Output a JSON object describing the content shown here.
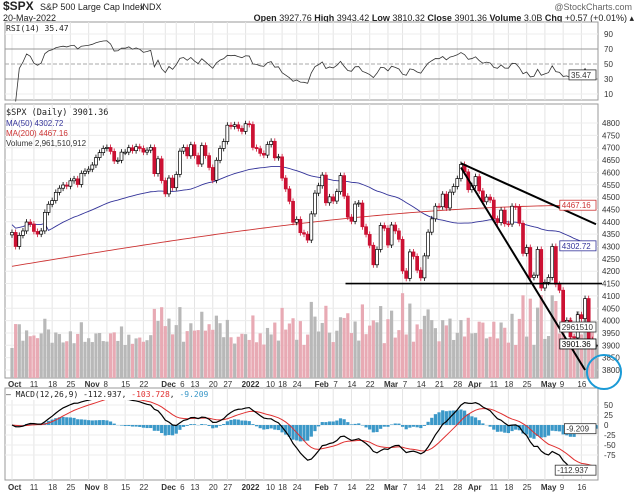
{
  "header": {
    "symbol": "$SPX",
    "name": "S&P 500 Large Cap Index",
    "exchange": "INDX",
    "date": "20-May-2022",
    "watermark": "@StockCharts.com",
    "open_label": "Open",
    "open": "3927.76",
    "high_label": "High",
    "high": "3943.42",
    "low_label": "Low",
    "low": "3810.32",
    "close_label": "Close",
    "close": "3901.36",
    "volume_label": "Volume",
    "volume": "3.0B",
    "chg_label": "Chg",
    "chg": "+0.57 (+0.01%)"
  },
  "rsi": {
    "legend": "RSI(14) 35.47",
    "value_tag": "35.47",
    "ticks": [
      "90",
      "70",
      "50",
      "30",
      "10"
    ]
  },
  "price": {
    "legend_title": "$SPX (Daily) 3901.36",
    "ma50_legend": "MA(50) 4302.72",
    "ma200_legend": "MA(200) 4467.16",
    "volume_legend": "Volume 2,961,510,912",
    "ma50_tag": "4302.72",
    "ma200_tag": "4467.16",
    "close_tag": "3901.36",
    "volume_tag": "2961510",
    "colors": {
      "up": "#000000",
      "down": "#cc1133",
      "ma50": "#333399",
      "ma200": "#cc3333",
      "volume_up": "#b8b8b8",
      "volume_down": "#e8aab4",
      "circle": "#1a9ad6"
    }
  },
  "macd": {
    "legend_name": "MACD(12,26,9)",
    "macd": "-112.937",
    "signal": "-103.728",
    "hist": "-9.209",
    "ticks": [
      "50",
      "25",
      "0",
      "-25",
      "-50",
      "-75"
    ],
    "tag_macd": "-112.937",
    "tag_hist": "-9.209",
    "colors": {
      "macd": "#000000",
      "signal": "#e03030",
      "hist": "#3b98c8"
    }
  },
  "chart_data": {
    "type": "candlestick",
    "title": "$SPX S&P 500 Large Cap Index INDX",
    "ylim": [
      3800,
      4800
    ],
    "y_ticks": [
      3800,
      3850,
      3900,
      3950,
      4000,
      4050,
      4100,
      4150,
      4200,
      4250,
      4300,
      4350,
      4400,
      4450,
      4500,
      4550,
      4600,
      4650,
      4700,
      4750,
      4800
    ],
    "x_ticks": [
      [
        "Oct",
        "2021-10-01"
      ],
      [
        "11",
        "2021-10-11"
      ],
      [
        "18",
        "2021-10-18"
      ],
      [
        "25",
        "2021-10-25"
      ],
      [
        "Nov",
        "2021-11-01"
      ],
      [
        "8",
        "2021-11-08"
      ],
      [
        "15",
        "2021-11-15"
      ],
      [
        "22",
        "2021-11-22"
      ],
      [
        "Dec",
        "2021-12-01"
      ],
      [
        "6",
        "2021-12-06"
      ],
      [
        "13",
        "2021-12-13"
      ],
      [
        "20",
        "2021-12-20"
      ],
      [
        "27",
        "2021-12-27"
      ],
      [
        "2022",
        "2022-01-03"
      ],
      [
        "10",
        "2022-01-10"
      ],
      [
        "18",
        "2022-01-18"
      ],
      [
        "24",
        "2022-01-24"
      ],
      [
        "Feb",
        "2022-02-01"
      ],
      [
        "7",
        "2022-02-07"
      ],
      [
        "14",
        "2022-02-14"
      ],
      [
        "22",
        "2022-02-22"
      ],
      [
        "Mar",
        "2022-03-01"
      ],
      [
        "7",
        "2022-03-07"
      ],
      [
        "14",
        "2022-03-14"
      ],
      [
        "21",
        "2022-03-21"
      ],
      [
        "28",
        "2022-03-28"
      ],
      [
        "Apr",
        "2022-04-01"
      ],
      [
        "11",
        "2022-04-11"
      ],
      [
        "18",
        "2022-04-18"
      ],
      [
        "25",
        "2022-04-25"
      ],
      [
        "May",
        "2022-05-02"
      ],
      [
        "9",
        "2022-05-09"
      ],
      [
        "16",
        "2022-05-16"
      ]
    ],
    "dates": [
      "2021-10-01",
      "2021-10-04",
      "2021-10-05",
      "2021-10-06",
      "2021-10-07",
      "2021-10-08",
      "2021-10-11",
      "2021-10-12",
      "2021-10-13",
      "2021-10-14",
      "2021-10-15",
      "2021-10-18",
      "2021-10-19",
      "2021-10-20",
      "2021-10-21",
      "2021-10-22",
      "2021-10-25",
      "2021-10-26",
      "2021-10-27",
      "2021-10-28",
      "2021-10-29",
      "2021-11-01",
      "2021-11-02",
      "2021-11-03",
      "2021-11-04",
      "2021-11-05",
      "2021-11-08",
      "2021-11-09",
      "2021-11-10",
      "2021-11-11",
      "2021-11-12",
      "2021-11-15",
      "2021-11-16",
      "2021-11-17",
      "2021-11-18",
      "2021-11-19",
      "2021-11-22",
      "2021-11-23",
      "2021-11-24",
      "2021-11-26",
      "2021-11-29",
      "2021-11-30",
      "2021-12-01",
      "2021-12-02",
      "2021-12-03",
      "2021-12-06",
      "2021-12-07",
      "2021-12-08",
      "2021-12-09",
      "2021-12-10",
      "2021-12-13",
      "2021-12-14",
      "2021-12-15",
      "2021-12-16",
      "2021-12-17",
      "2021-12-20",
      "2021-12-21",
      "2021-12-22",
      "2021-12-23",
      "2021-12-27",
      "2021-12-28",
      "2021-12-29",
      "2021-12-30",
      "2021-12-31",
      "2022-01-03",
      "2022-01-04",
      "2022-01-05",
      "2022-01-06",
      "2022-01-07",
      "2022-01-10",
      "2022-01-11",
      "2022-01-12",
      "2022-01-13",
      "2022-01-14",
      "2022-01-18",
      "2022-01-19",
      "2022-01-20",
      "2022-01-21",
      "2022-01-24",
      "2022-01-25",
      "2022-01-26",
      "2022-01-27",
      "2022-01-28",
      "2022-01-31",
      "2022-02-01",
      "2022-02-02",
      "2022-02-03",
      "2022-02-04",
      "2022-02-07",
      "2022-02-08",
      "2022-02-09",
      "2022-02-10",
      "2022-02-11",
      "2022-02-14",
      "2022-02-15",
      "2022-02-16",
      "2022-02-17",
      "2022-02-18",
      "2022-02-22",
      "2022-02-23",
      "2022-02-24",
      "2022-02-25",
      "2022-02-28",
      "2022-03-01",
      "2022-03-02",
      "2022-03-03",
      "2022-03-04",
      "2022-03-07",
      "2022-03-08",
      "2022-03-09",
      "2022-03-10",
      "2022-03-11",
      "2022-03-14",
      "2022-03-15",
      "2022-03-16",
      "2022-03-17",
      "2022-03-18",
      "2022-03-21",
      "2022-03-22",
      "2022-03-23",
      "2022-03-24",
      "2022-03-25",
      "2022-03-28",
      "2022-03-29",
      "2022-03-30",
      "2022-03-31",
      "2022-04-01",
      "2022-04-04",
      "2022-04-05",
      "2022-04-06",
      "2022-04-07",
      "2022-04-08",
      "2022-04-11",
      "2022-04-12",
      "2022-04-13",
      "2022-04-14",
      "2022-04-18",
      "2022-04-19",
      "2022-04-20",
      "2022-04-21",
      "2022-04-22",
      "2022-04-25",
      "2022-04-26",
      "2022-04-27",
      "2022-04-28",
      "2022-04-29",
      "2022-05-02",
      "2022-05-03",
      "2022-05-04",
      "2022-05-05",
      "2022-05-06",
      "2022-05-09",
      "2022-05-10",
      "2022-05-11",
      "2022-05-12",
      "2022-05-13",
      "2022-05-16",
      "2022-05-17",
      "2022-05-18",
      "2022-05-19",
      "2022-05-20"
    ],
    "close": [
      4357,
      4300,
      4345,
      4363,
      4399,
      4391,
      4361,
      4350,
      4363,
      4438,
      4471,
      4486,
      4519,
      4536,
      4549,
      4544,
      4566,
      4574,
      4551,
      4596,
      4605,
      4613,
      4630,
      4660,
      4680,
      4697,
      4701,
      4685,
      4646,
      4649,
      4682,
      4682,
      4700,
      4688,
      4704,
      4697,
      4682,
      4690,
      4701,
      4595,
      4655,
      4567,
      4513,
      4577,
      4538,
      4592,
      4686,
      4701,
      4667,
      4712,
      4668,
      4634,
      4709,
      4668,
      4620,
      4568,
      4649,
      4697,
      4725,
      4791,
      4786,
      4793,
      4778,
      4766,
      4797,
      4794,
      4701,
      4696,
      4677,
      4670,
      4713,
      4726,
      4659,
      4663,
      4577,
      4533,
      4483,
      4398,
      4410,
      4356,
      4350,
      4326,
      4432,
      4516,
      4546,
      4589,
      4477,
      4501,
      4484,
      4522,
      4587,
      4504,
      4419,
      4402,
      4472,
      4476,
      4380,
      4349,
      4305,
      4226,
      4288,
      4385,
      4374,
      4306,
      4387,
      4363,
      4329,
      4201,
      4171,
      4278,
      4260,
      4204,
      4173,
      4262,
      4358,
      4412,
      4463,
      4461,
      4512,
      4456,
      4520,
      4543,
      4575,
      4632,
      4602,
      4530,
      4546,
      4583,
      4525,
      4481,
      4500,
      4488,
      4413,
      4397,
      4447,
      4392,
      4391,
      4463,
      4460,
      4394,
      4272,
      4296,
      4175,
      4184,
      4288,
      4132,
      4155,
      4175,
      4300,
      4147,
      4123,
      3991,
      4001,
      3935,
      3930,
      4024,
      4008,
      4089,
      3923,
      3901,
      3901
    ],
    "ma200_range": [
      4280,
      4467.16
    ],
    "annotations": [
      {
        "type": "horizontal",
        "price": 4150,
        "from": "2022-02-09",
        "to": "2022-05-20"
      },
      {
        "type": "trendline",
        "from": [
          "2022-03-29",
          4637
        ],
        "to": [
          "2022-05-20",
          4390
        ]
      },
      {
        "type": "trendline",
        "from": [
          "2022-03-29",
          4620
        ],
        "to": [
          "2022-05-17",
          3800
        ]
      }
    ]
  }
}
